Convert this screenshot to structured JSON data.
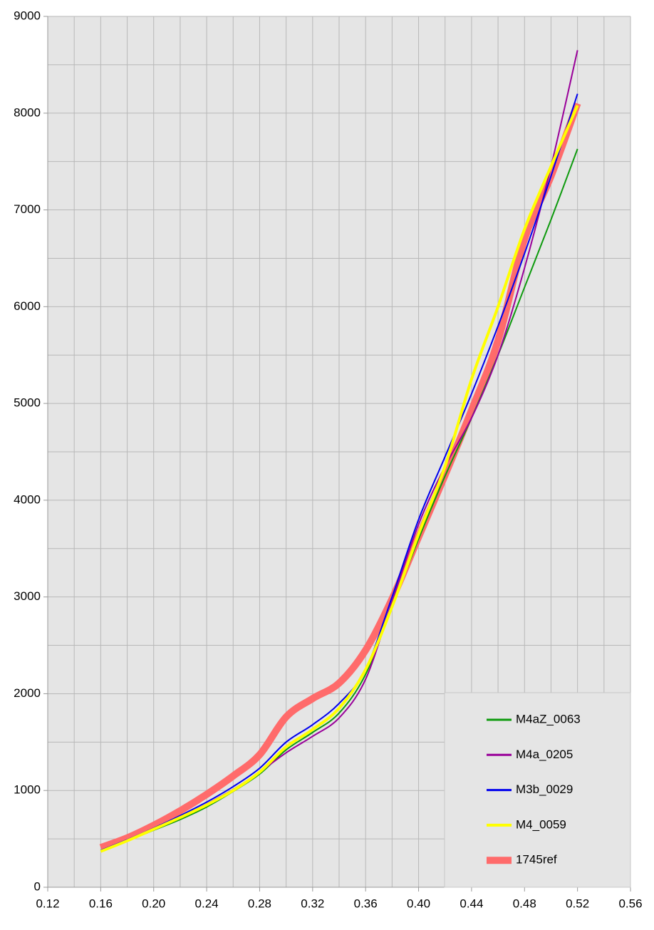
{
  "chart_data": {
    "type": "line",
    "x": [
      0.16,
      0.18,
      0.2,
      0.22,
      0.24,
      0.26,
      0.28,
      0.3,
      0.32,
      0.34,
      0.36,
      0.38,
      0.4,
      0.42,
      0.44,
      0.46,
      0.48,
      0.5,
      0.52
    ],
    "series": [
      {
        "name": "1745ref",
        "color": "#ff6b6b",
        "width": 10,
        "values": [
          410,
          510,
          640,
          790,
          960,
          1150,
          1370,
          1760,
          1950,
          2110,
          2450,
          2980,
          3620,
          4260,
          4930,
          5650,
          6700,
          7350,
          8100
        ]
      },
      {
        "name": "M4aZ_0063",
        "color": "#0e9a0e",
        "width": 2,
        "values": [
          380,
          480,
          590,
          700,
          830,
          990,
          1170,
          1420,
          1600,
          1800,
          2200,
          2900,
          3600,
          4250,
          4850,
          5500,
          6200,
          6900,
          7630
        ]
      },
      {
        "name": "M4a_0205",
        "color": "#990099",
        "width": 2,
        "values": [
          380,
          490,
          600,
          720,
          860,
          1010,
          1190,
          1390,
          1560,
          1750,
          2150,
          2950,
          3750,
          4350,
          4850,
          5500,
          6400,
          7450,
          8650
        ]
      },
      {
        "name": "M3b_0029",
        "color": "#0000ee",
        "width": 2,
        "values": [
          380,
          490,
          610,
          740,
          880,
          1040,
          1230,
          1500,
          1680,
          1900,
          2250,
          3000,
          3800,
          4450,
          5100,
          5800,
          6550,
          7350,
          8200
        ]
      },
      {
        "name": "M4_0059",
        "color": "#ffff00",
        "width": 4,
        "values": [
          370,
          480,
          600,
          720,
          850,
          1000,
          1190,
          1450,
          1630,
          1850,
          2250,
          2900,
          3650,
          4350,
          5250,
          6000,
          6800,
          7450,
          8080
        ]
      }
    ],
    "legend_order": [
      1,
      2,
      3,
      4,
      0
    ],
    "xlim": [
      0.12,
      0.56
    ],
    "xticks": [
      0.12,
      0.16,
      {
        "value": 0.2,
        "label": "0.20"
      },
      0.24,
      0.28,
      0.32,
      0.36,
      {
        "value": 0.4,
        "label": "0.40"
      },
      0.44,
      0.48,
      0.52,
      0.56
    ],
    "xminorticks": [
      0.14,
      0.18,
      0.22,
      0.26,
      0.3,
      0.34,
      0.38,
      0.42,
      0.46,
      0.5,
      0.54
    ],
    "ylim": [
      0,
      9000
    ],
    "yticks": [
      0,
      1000,
      2000,
      3000,
      4000,
      5000,
      6000,
      7000,
      8000,
      9000
    ],
    "yminorticks": [
      500,
      1500,
      2500,
      3500,
      4500,
      5500,
      6500,
      7500,
      8500
    ],
    "grid": true,
    "legend": "lower right"
  }
}
